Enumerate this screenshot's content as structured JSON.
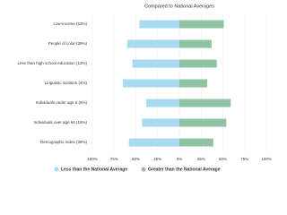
{
  "chart_data": {
    "type": "diverging-bar",
    "title": "Compared to National Averages",
    "categories": [
      "Low-income (53%)",
      "People of color (39%)",
      "Less than high school education (13%)",
      "Linguistic isolation (4%)",
      "Individuals under age 5 (6%)",
      "Individuals over age 64 (15%)",
      "Demographic index (36%)"
    ],
    "series": [
      {
        "name": "Less than the National Average",
        "color": "#a8daf0",
        "values": [
          -46,
          -60,
          -54,
          -65,
          -38,
          -43,
          -58
        ]
      },
      {
        "name": "Greater than the National Average",
        "color": "#8fc3a3",
        "values": [
          51,
          37,
          43,
          32,
          59,
          54,
          39
        ]
      }
    ],
    "xlim": [
      -100,
      100
    ],
    "xticks": [
      {
        "value": -100,
        "label": "100%"
      },
      {
        "value": -75,
        "label": "75%"
      },
      {
        "value": -50,
        "label": "50%"
      },
      {
        "value": -25,
        "label": "25%"
      },
      {
        "value": 0,
        "label": "0%"
      },
      {
        "value": 25,
        "label": "25%"
      },
      {
        "value": 50,
        "label": "50%"
      },
      {
        "value": 75,
        "label": "75%"
      },
      {
        "value": 100,
        "label": "100%"
      }
    ],
    "grid": true
  }
}
